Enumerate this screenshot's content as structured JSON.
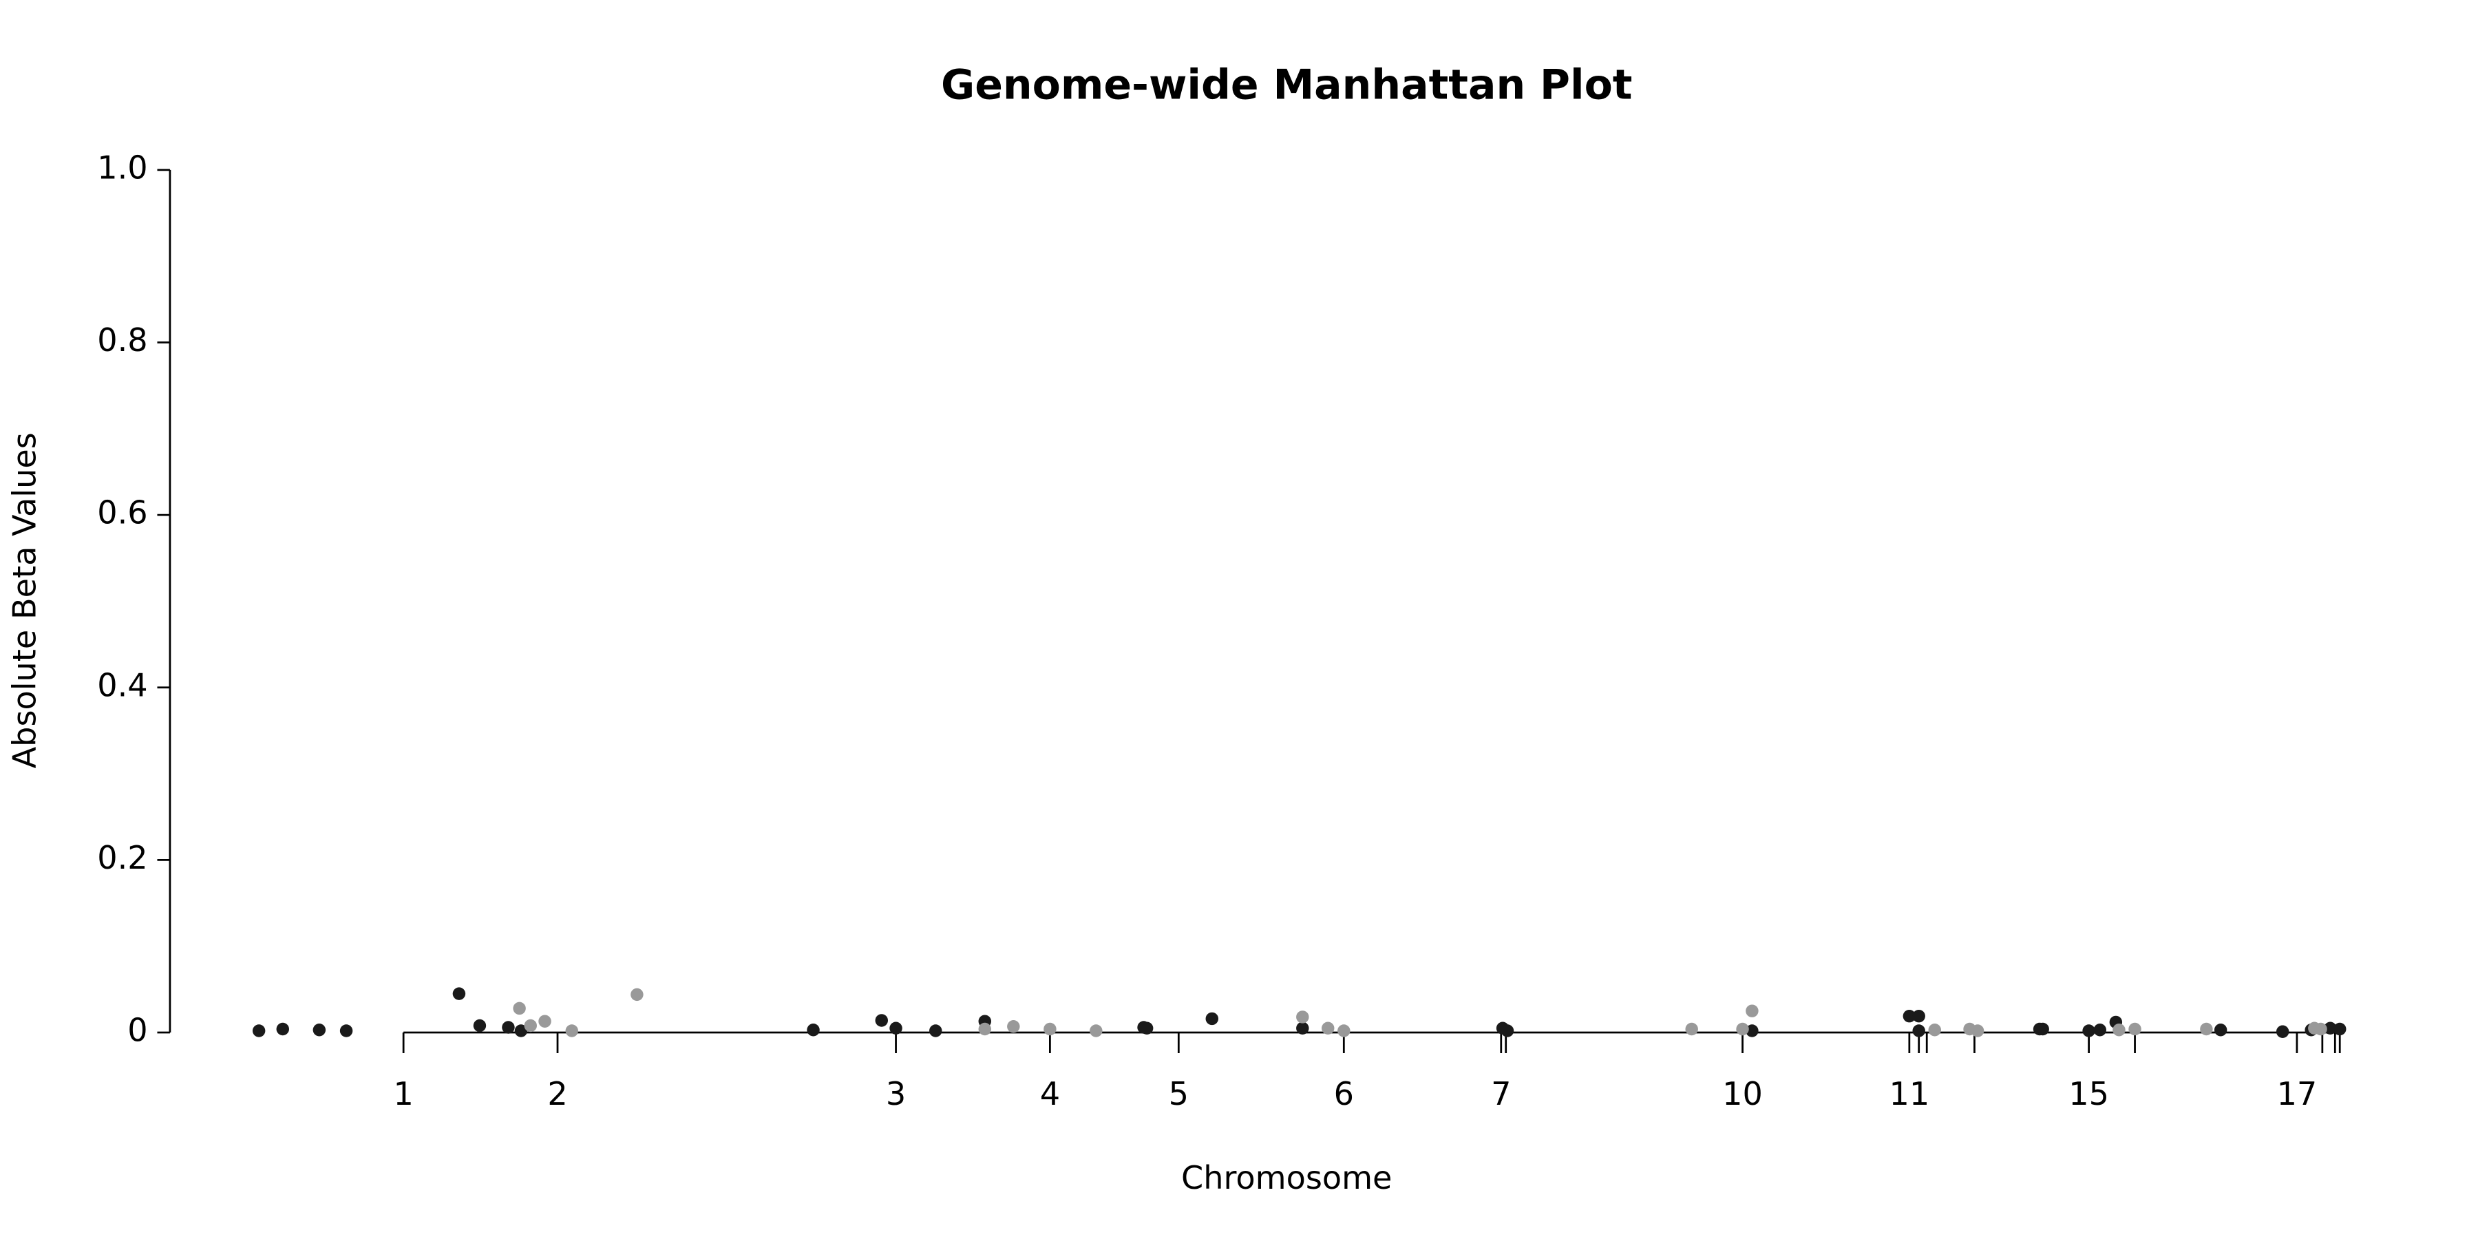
{
  "chart_data": {
    "type": "scatter",
    "title": "Genome-wide Manhattan Plot",
    "x_label": "Chromosome",
    "y_label": "Absolute Beta Values",
    "xlim": [
      150,
      1480
    ],
    "ylim": [
      0,
      1.0
    ],
    "xticks": [
      {
        "value": 254,
        "label": "1"
      },
      {
        "value": 351,
        "label": "2"
      },
      {
        "value": 564,
        "label": "3"
      },
      {
        "value": 661,
        "label": "4"
      },
      {
        "value": 742,
        "label": "5"
      },
      {
        "value": 846,
        "label": "6"
      },
      {
        "value": 945,
        "label": "7"
      },
      {
        "value": 948,
        "label": null
      },
      {
        "value": 1097,
        "label": "10"
      },
      {
        "value": 1202,
        "label": "11"
      },
      {
        "value": 1208,
        "label": null
      },
      {
        "value": 1213,
        "label": null
      },
      {
        "value": 1243,
        "label": null
      },
      {
        "value": 1315,
        "label": "15"
      },
      {
        "value": 1344,
        "label": null
      },
      {
        "value": 1446,
        "label": "17"
      },
      {
        "value": 1462,
        "label": null
      },
      {
        "value": 1470,
        "label": null
      },
      {
        "value": 1473,
        "label": null
      }
    ],
    "yticks": [
      0,
      0.2,
      0.4,
      0.6,
      0.8,
      {
        "value": 1.0,
        "label": "1.0"
      }
    ],
    "series": [
      {
        "color": "#1a1a1a",
        "x": [
          163,
          178,
          201,
          218,
          289,
          302,
          320,
          328,
          512,
          555,
          564,
          589,
          620,
          720,
          722,
          763,
          820,
          946,
          949,
          1103,
          1202,
          1208,
          1208,
          1284,
          1286,
          1315,
          1322,
          1332,
          1398,
          1437,
          1455,
          1467,
          1473
        ],
        "values": [
          0.002,
          0.004,
          0.003,
          0.002,
          0.045,
          0.008,
          0.006,
          0.002,
          0.003,
          0.014,
          0.005,
          0.002,
          0.013,
          0.006,
          0.005,
          0.016,
          0.005,
          0.005,
          0.002,
          0.002,
          0.019,
          0.019,
          0.002,
          0.004,
          0.004,
          0.002,
          0.003,
          0.012,
          0.003,
          0.001,
          0.003,
          0.005,
          0.004
        ]
      },
      {
        "color": "#999999",
        "x": [
          327,
          334,
          343,
          360,
          401,
          620,
          638,
          661,
          690,
          820,
          836,
          846,
          1065,
          1097,
          1103,
          1218,
          1240,
          1245,
          1334,
          1344,
          1389,
          1457,
          1461
        ],
        "values": [
          0.028,
          0.008,
          0.013,
          0.002,
          0.044,
          0.004,
          0.007,
          0.004,
          0.002,
          0.018,
          0.005,
          0.002,
          0.004,
          0.004,
          0.025,
          0.003,
          0.004,
          0.002,
          0.003,
          0.004,
          0.004,
          0.005,
          0.004
        ]
      }
    ]
  }
}
